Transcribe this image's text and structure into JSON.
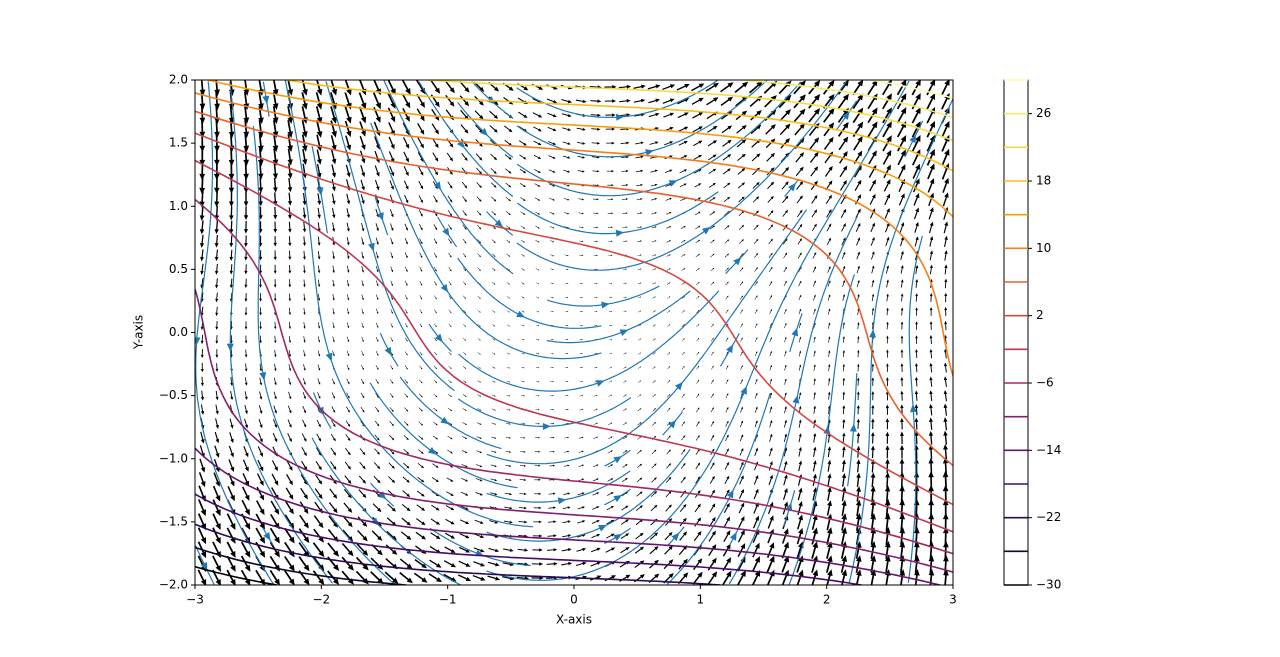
{
  "chart_data": {
    "type": "vector-field",
    "xlabel": "X-axis",
    "ylabel": "Y-axis",
    "xlim": [
      -3,
      3
    ],
    "ylim": [
      -2,
      2
    ],
    "xticks": [
      {
        "value": -3,
        "label": "−3"
      },
      {
        "value": -2,
        "label": "−2"
      },
      {
        "value": -1,
        "label": "−1"
      },
      0,
      1,
      2,
      3
    ],
    "yticks": [
      {
        "value": -2,
        "label": "−2.0"
      },
      {
        "value": -1.5,
        "label": "−1.5"
      },
      {
        "value": -1,
        "label": "−1.0"
      },
      {
        "value": -0.5,
        "label": "−0.5"
      },
      {
        "value": 0,
        "label": "0.0"
      },
      {
        "value": 0.5,
        "label": "0.5"
      },
      {
        "value": 1,
        "label": "1.0"
      },
      {
        "value": 1.5,
        "label": "1.5"
      },
      {
        "value": 2,
        "label": "2.0"
      }
    ],
    "stream_color": "#1f77b4",
    "arrow_color": "#000000",
    "colorbar": {
      "lim": [
        -30,
        30
      ],
      "ticks": [
        {
          "value": -30,
          "label": "−30"
        },
        {
          "value": -22,
          "label": "−22"
        },
        {
          "value": -14,
          "label": "−14"
        },
        {
          "value": -6,
          "label": "−6"
        },
        2,
        10,
        18,
        26
      ],
      "levels": [
        -30,
        -26,
        -22,
        -18,
        -14,
        -10,
        -6,
        -2,
        2,
        6,
        10,
        14,
        18,
        22,
        26,
        30
      ],
      "colors": [
        "#000004",
        "#0d0829",
        "#280b53",
        "#470b6a",
        "#65156e",
        "#82206c",
        "#9f2a63",
        "#bb3754",
        "#d44842",
        "#e8602d",
        "#f57d15",
        "#fb9b06",
        "#fcbb1a",
        "#f7da41",
        "#f1ed6f",
        "#fcffa4"
      ]
    }
  }
}
